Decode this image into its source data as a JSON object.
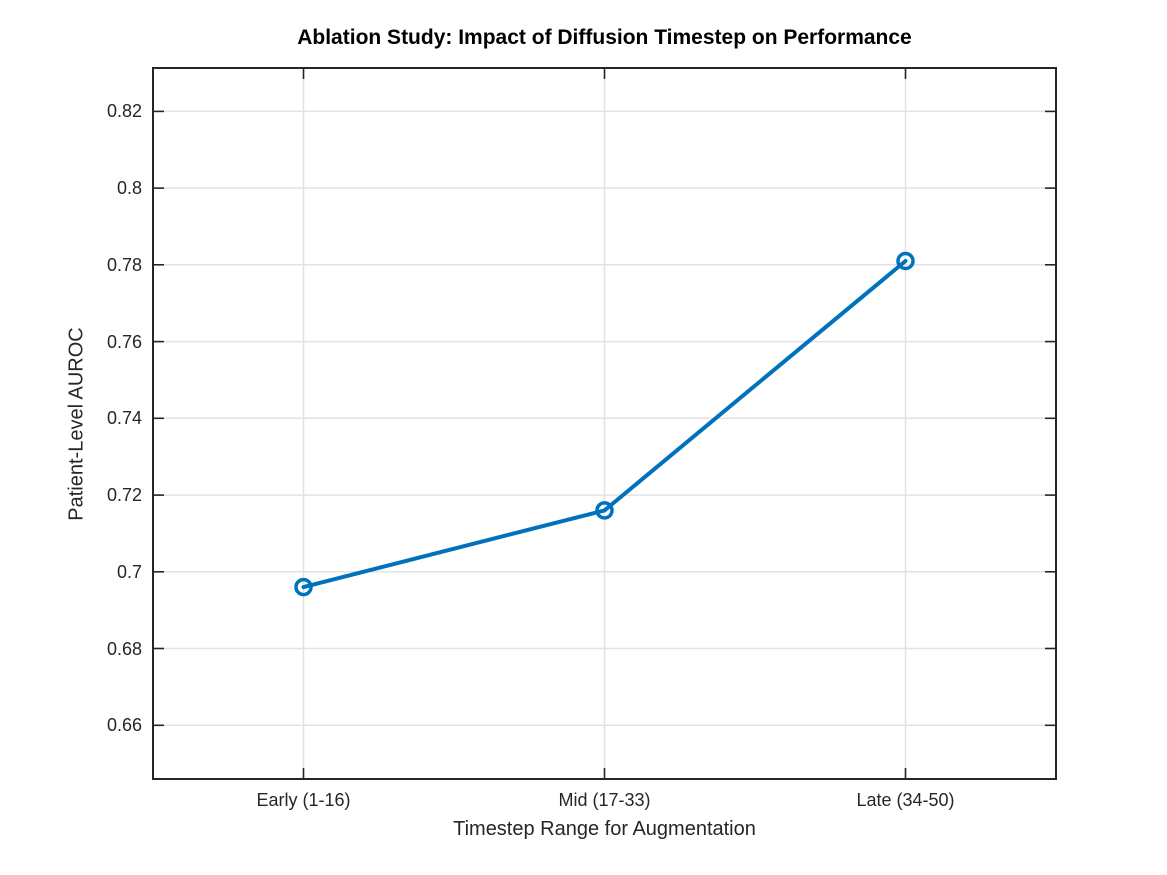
{
  "figure": {
    "background": "#ffffff"
  },
  "chart_data": {
    "type": "line",
    "title": "Ablation Study: Impact of Diffusion Timestep on Performance",
    "xlabel": "Timestep Range for Augmentation",
    "ylabel": "Patient-Level AUROC",
    "categories": [
      "Early (1-16)",
      "Mid (17-33)",
      "Late (34-50)"
    ],
    "values": [
      0.696,
      0.716,
      0.781
    ],
    "yticks": [
      0.66,
      0.68,
      0.7,
      0.72,
      0.74,
      0.76,
      0.78,
      0.8,
      0.82
    ],
    "ytick_labels": [
      "0.66",
      "0.68",
      "0.7",
      "0.72",
      "0.74",
      "0.76",
      "0.78",
      "0.8",
      "0.82"
    ],
    "ylim": [
      0.646,
      0.8313
    ],
    "grid": true,
    "legend": "none",
    "line_color": "#0072BD",
    "marker": "open-circle",
    "axis_color": "#262626",
    "grid_color": "#e2e2e2",
    "title_color": "#000000"
  }
}
